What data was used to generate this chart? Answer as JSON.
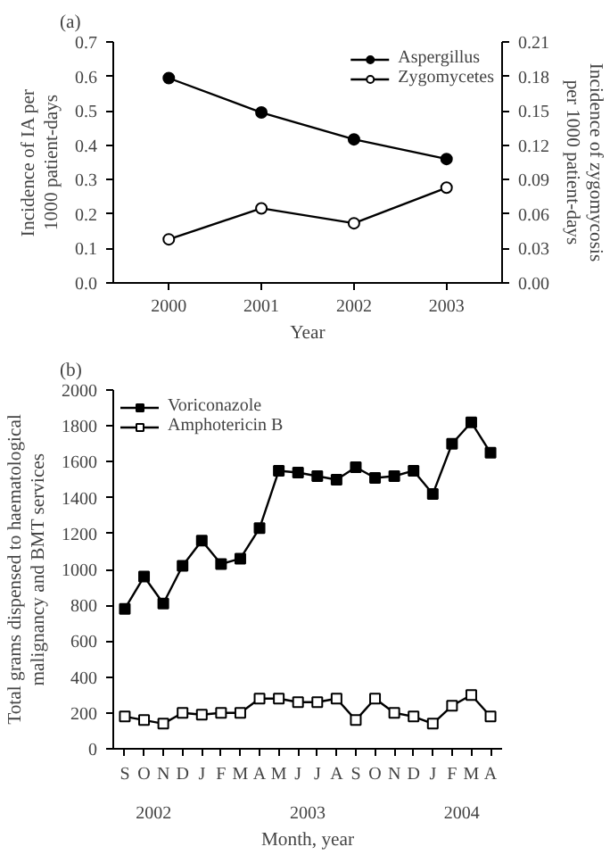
{
  "chart_data": [
    {
      "type": "line",
      "title": "(a)",
      "xlabel": "Year",
      "ylabel": "Incidence of IA per\n1000 patient-days",
      "y2label": "Incidence of zygomycosis\nper 1000 patient-days",
      "x": [
        2000,
        2001,
        2002,
        2003
      ],
      "series": [
        {
          "name": "Aspergillus",
          "color": "#000000",
          "marker": "circle",
          "values": [
            0.595,
            0.495,
            0.417,
            0.36
          ]
        },
        {
          "name": "Zygomycetes",
          "color": "#000000",
          "marker": "circle",
          "axis": "y2",
          "values": [
            0.038,
            0.065,
            0.052,
            0.083
          ]
        }
      ],
      "xlim": [
        1999.4,
        2003.6
      ],
      "xticks": [
        2000,
        2001,
        2002,
        2003
      ],
      "ylim": [
        0,
        0.7
      ],
      "yticks": [
        {
          "value": 0,
          "label": "0.0"
        },
        0.1,
        0.2,
        0.3,
        0.4,
        0.5,
        0.6,
        0.7
      ],
      "y2lim": [
        0,
        0.21
      ],
      "y2ticks": [
        {
          "value": 0,
          "label": "0.00"
        },
        0.03,
        0.06,
        0.09,
        0.12,
        0.15,
        0.18,
        0.21
      ],
      "grid": false,
      "legend": "top right",
      "line_style": "solid"
    },
    {
      "type": "line",
      "title": "(b)",
      "xlabel": "Month, year",
      "ylabel": "Total grams dispensed to haematological\nmalignancy and BMT services",
      "categories": [
        "S",
        "O",
        "N",
        "D",
        "J",
        "F",
        "M",
        "A",
        "M",
        "J",
        "J",
        "A",
        "S",
        "O",
        "N",
        "D",
        "J",
        "F",
        "M",
        "A"
      ],
      "series": [
        {
          "name": "Voriconazole",
          "color": "#000000",
          "marker": "square",
          "values": [
            780,
            960,
            810,
            1020,
            1160,
            1030,
            1060,
            1230,
            1550,
            1540,
            1520,
            1500,
            1570,
            1510,
            1520,
            1550,
            1420,
            1700,
            1820,
            1650
          ]
        },
        {
          "name": "Amphotericin B",
          "color": "#000000",
          "marker": "square",
          "values": [
            180,
            160,
            140,
            200,
            190,
            200,
            200,
            280,
            280,
            260,
            260,
            280,
            160,
            280,
            200,
            180,
            140,
            240,
            300,
            180
          ]
        }
      ],
      "ylim": [
        0,
        2000
      ],
      "yticks": [
        0,
        200,
        400,
        600,
        800,
        1000,
        1200,
        1400,
        1600,
        1800,
        2000
      ],
      "annotations": [
        "2002",
        "2003",
        "2004"
      ],
      "grid": false,
      "legend": "top left",
      "line_style": "solid"
    }
  ]
}
